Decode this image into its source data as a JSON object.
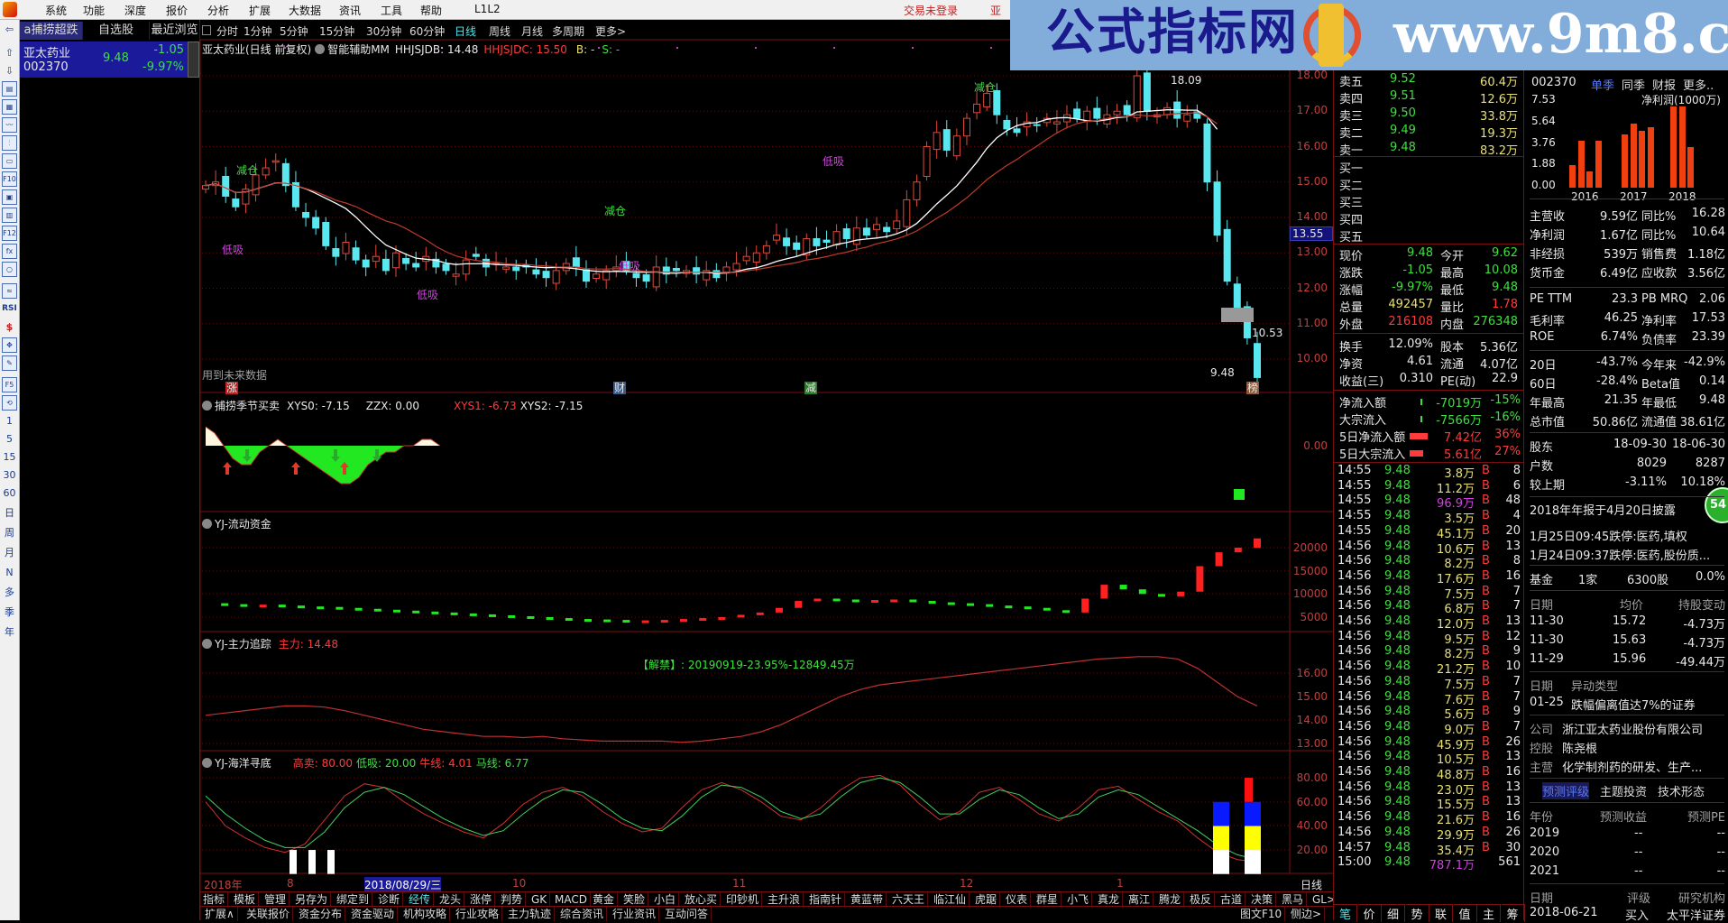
{
  "menu": {
    "items": [
      "系统",
      "功能",
      "深度",
      "报价",
      "分析",
      "扩展",
      "大数据",
      "资讯",
      "工具",
      "帮助",
      "L1L2"
    ],
    "trade_status": "交易未登录",
    "trade_extra": "亚"
  },
  "banner": {
    "logo_text": "公式指标网",
    "url": "www.9m8.cn"
  },
  "toolbar": {
    "labels": [
      "⇦",
      "⇧",
      "⇩",
      "▤",
      "▦",
      "〰",
      "⫶",
      "▭",
      "F10",
      "▣",
      "▥",
      "F12",
      "fx",
      "○",
      "≈",
      "RSI",
      "$",
      "✥",
      "✎",
      "F5",
      "⟲",
      "1",
      "5",
      "15",
      "30",
      "60",
      "日",
      "周",
      "月",
      "N",
      "多",
      "季",
      "年"
    ]
  },
  "stocklist": {
    "tabs": [
      "a捕捞超跌",
      "自选股",
      "最近浏览"
    ],
    "stock": {
      "name": "亚太药业",
      "code": "002370",
      "price": "9.48",
      "change": "-1.05",
      "pct": "-9.97%"
    }
  },
  "periods": {
    "items": [
      "分时",
      "1分钟",
      "5分钟",
      "15分钟",
      "30分钟",
      "60分钟",
      "日线",
      "周线",
      "月线",
      "多周期",
      "更多>"
    ],
    "active": 6
  },
  "main": {
    "title": "亚太药业(日线 前复权)",
    "indicator": "智能辅助MM",
    "v1": "HHJSJDB: 14.48",
    "v2": "HHJSJDC: 15.50",
    "v3": "B: -",
    "v4": "S: -",
    "yticks": [
      "18.00",
      "17.00",
      "16.00",
      "15.00",
      "14.00",
      "13.00",
      "12.00",
      "11.00",
      "10.00"
    ],
    "cursor_price": "13.55",
    "high_label": "18.09",
    "low_label": "9.48",
    "mark_label": "10.53",
    "future_note": "用到未来数据",
    "markers": [
      "涨",
      "财",
      "减",
      "榜"
    ],
    "signal_reduce": "减仓",
    "signal_buy": "低吸",
    "closes": [
      14.9,
      15.0,
      14.6,
      14.3,
      14.8,
      15.2,
      15.4,
      15.6,
      14.9,
      14.3,
      14.0,
      13.7,
      13.2,
      12.9,
      13.3,
      12.8,
      12.6,
      12.9,
      12.5,
      13.0,
      12.7,
      12.6,
      12.9,
      12.6,
      12.5,
      12.4,
      12.8,
      12.9,
      12.6,
      12.7,
      12.6,
      12.5,
      12.6,
      12.4,
      12.3,
      12.5,
      12.7,
      12.6,
      12.2,
      12.4,
      12.5,
      12.6,
      12.5,
      12.3,
      12.2,
      12.6,
      12.4,
      12.5,
      12.5,
      12.4,
      12.5,
      12.3,
      12.6,
      12.7,
      12.9,
      13.0,
      13.2,
      13.5,
      13.2,
      13.1,
      13.4,
      13.2,
      13.3,
      13.6,
      13.4,
      13.7,
      13.5,
      13.8,
      13.6,
      13.9,
      14.5,
      15.0,
      16.0,
      16.4,
      15.9,
      16.3,
      16.8,
      17.2,
      17.5,
      16.9,
      16.5,
      16.4,
      16.7,
      16.6,
      16.8,
      16.7,
      16.9,
      16.8,
      17.0,
      16.8,
      16.9,
      17.0,
      16.9,
      18.0,
      17.0,
      16.9,
      17.1,
      16.8,
      16.9,
      16.8,
      15.0,
      13.5,
      12.2,
      11.4,
      10.6,
      9.48
    ]
  },
  "pane2": {
    "title": "捕捞季节买卖",
    "xys0": "XYS0: -7.15",
    "zzx": "ZZX: 0.00",
    "xys1": "XYS1: -6.73",
    "xys2": "XYS2: -7.15",
    "ytick": "0.00",
    "values": [
      3,
      2,
      0,
      -2,
      -3,
      -3,
      -1,
      0,
      1,
      0,
      -1,
      -2,
      -3,
      -4,
      -5,
      -6,
      -6,
      -5,
      -3,
      -2,
      -1,
      -1,
      0,
      0,
      1,
      1,
      0
    ]
  },
  "pane3": {
    "title": "YJ-流动资金",
    "yticks": [
      "20000",
      "15000",
      "10000",
      "5000"
    ],
    "values": [
      8000,
      7800,
      7600,
      7700,
      7500,
      7300,
      7200,
      7000,
      6800,
      6600,
      6400,
      6200,
      6000,
      5800,
      5600,
      5400,
      5200,
      5000,
      4800,
      4600,
      4500,
      4400,
      4300,
      4300,
      4400,
      4600,
      4800,
      5000,
      5500,
      6000,
      7000,
      8500,
      9000,
      8800,
      8600,
      8700,
      8800,
      8500,
      8200,
      8000,
      7800,
      7500,
      7300,
      7000,
      6500,
      6000,
      9000,
      12000,
      11000,
      10000,
      9500,
      10500,
      16000,
      19000,
      20000,
      22000
    ]
  },
  "pane4": {
    "title": "YJ-主力追踪",
    "value": "主力: 14.48",
    "note": "【解禁】: 20190919-23.95%-12849.45万",
    "yticks": [
      "16.00",
      "15.00",
      "14.00",
      "13.00"
    ],
    "values": [
      14.2,
      14.3,
      14.4,
      14.5,
      14.6,
      14.6,
      14.55,
      14.4,
      14.2,
      14.0,
      13.8,
      13.6,
      13.5,
      13.4,
      13.3,
      13.3,
      13.25,
      13.3,
      13.2,
      13.15,
      13.1,
      13.1,
      13.1,
      13.1,
      13.05,
      13.1,
      13.2,
      13.3,
      13.5,
      13.8,
      14.2,
      14.6,
      15.0,
      15.3,
      15.5,
      15.6,
      15.7,
      15.8,
      15.9,
      16.0,
      16.1,
      16.2,
      16.3,
      16.4,
      16.5,
      16.6,
      16.65,
      16.7,
      16.7,
      16.6,
      16.2,
      15.6,
      15.0,
      14.6
    ]
  },
  "pane5": {
    "title": "YJ-海洋寻底",
    "sell": "高卖: 80.00",
    "buy": "低吸: 20.00",
    "bull": "牛线: 4.01",
    "horse": "马线: 6.77",
    "yticks": [
      "80.00",
      "60.00",
      "40.00",
      "20.00"
    ],
    "red": [
      60,
      40,
      30,
      22,
      18,
      25,
      45,
      65,
      75,
      72,
      60,
      50,
      42,
      35,
      30,
      42,
      58,
      68,
      72,
      65,
      52,
      42,
      35,
      38,
      55,
      70,
      76,
      70,
      60,
      48,
      45,
      55,
      70,
      80,
      82,
      74,
      58,
      45,
      52,
      68,
      72,
      62,
      50,
      44,
      55,
      70,
      73,
      62,
      52,
      44,
      30,
      18,
      12,
      10
    ],
    "green": [
      65,
      50,
      38,
      28,
      22,
      22,
      35,
      55,
      68,
      72,
      66,
      56,
      46,
      38,
      32,
      36,
      50,
      62,
      70,
      68,
      58,
      46,
      38,
      36,
      48,
      64,
      74,
      72,
      64,
      52,
      46,
      50,
      64,
      76,
      80,
      76,
      64,
      50,
      50,
      62,
      70,
      66,
      55,
      46,
      50,
      64,
      70,
      66,
      56,
      46,
      36,
      24,
      16,
      12
    ]
  },
  "dates": {
    "labels": [
      "2018年",
      "8",
      "2018/08/29/三",
      "10",
      "11",
      "12",
      "1"
    ],
    "period": "日线"
  },
  "tabs": {
    "items": [
      "指标",
      "模板",
      "管理",
      "另存为",
      "绑定到",
      "诊断",
      "经传",
      "龙头",
      "涨停",
      "判势",
      "GK",
      "MACD",
      "黄金",
      "笑脸",
      "小白",
      "放心买",
      "印钞机",
      "主升浪",
      "指南针",
      "黄蓝带",
      "六天王",
      "临江仙",
      "虎踞",
      "仪表",
      "群星",
      "小飞",
      "真龙",
      "离江",
      "腾龙",
      "极反",
      "古道",
      "决策",
      "黑马",
      "GL>",
      "+",
      "-"
    ]
  },
  "bottomtabs": {
    "items": [
      "扩展∧",
      "关联报价",
      "资金分布",
      "资金驱动",
      "机构攻略",
      "行业攻略",
      "主力轨迹",
      "综合资讯",
      "行业资讯",
      "互动问答"
    ],
    "f10": "图文F10",
    "side": "侧边>"
  },
  "orders": {
    "asks": [
      {
        "label": "卖五",
        "price": "9.52",
        "vol": "60.4万"
      },
      {
        "label": "卖四",
        "price": "9.51",
        "vol": "12.6万"
      },
      {
        "label": "卖三",
        "price": "9.50",
        "vol": "33.8万"
      },
      {
        "label": "卖二",
        "price": "9.49",
        "vol": "19.3万"
      },
      {
        "label": "卖一",
        "price": "9.48",
        "vol": "83.2万"
      }
    ],
    "bids": [
      {
        "label": "买一"
      },
      {
        "label": "买二"
      },
      {
        "label": "买三"
      },
      {
        "label": "买四"
      },
      {
        "label": "买五"
      }
    ],
    "quote": [
      [
        "现价",
        "9.48",
        "今开",
        "9.62"
      ],
      [
        "涨跌",
        "-1.05",
        "最高",
        "10.08"
      ],
      [
        "涨幅",
        "-9.97%",
        "最低",
        "9.48"
      ],
      [
        "总量",
        "492457",
        "量比",
        "1.78"
      ],
      [
        "外盘",
        "216108",
        "内盘",
        "276348"
      ]
    ],
    "stats": [
      [
        "换手",
        "12.09%",
        "股本",
        "5.36亿"
      ],
      [
        "净资",
        "4.61",
        "流通",
        "4.07亿"
      ],
      [
        "收益(三)",
        "0.310",
        "PE(动)",
        "22.9"
      ]
    ],
    "flows": [
      [
        "净流入额",
        "-7019万",
        "-15%"
      ],
      [
        "大宗流入",
        "-7566万",
        "-16%"
      ],
      [
        "5日净流入额",
        "7.42亿",
        "36%"
      ],
      [
        "5日大宗流入",
        "5.61亿",
        "27%"
      ]
    ],
    "trades": [
      [
        "14:55",
        "9.48",
        "3.8万",
        "B",
        "8"
      ],
      [
        "14:55",
        "9.48",
        "11.2万",
        "B",
        "6"
      ],
      [
        "14:55",
        "9.48",
        "96.9万",
        "B",
        "48"
      ],
      [
        "14:55",
        "9.48",
        "3.5万",
        "B",
        "4"
      ],
      [
        "14:55",
        "9.48",
        "45.1万",
        "B",
        "20"
      ],
      [
        "14:56",
        "9.48",
        "10.6万",
        "B",
        "13"
      ],
      [
        "14:56",
        "9.48",
        "8.2万",
        "B",
        "8"
      ],
      [
        "14:56",
        "9.48",
        "17.6万",
        "B",
        "16"
      ],
      [
        "14:56",
        "9.48",
        "7.5万",
        "B",
        "7"
      ],
      [
        "14:56",
        "9.48",
        "6.8万",
        "B",
        "7"
      ],
      [
        "14:56",
        "9.48",
        "12.0万",
        "B",
        "13"
      ],
      [
        "14:56",
        "9.48",
        "9.5万",
        "B",
        "12"
      ],
      [
        "14:56",
        "9.48",
        "8.2万",
        "B",
        "9"
      ],
      [
        "14:56",
        "9.48",
        "21.2万",
        "B",
        "10"
      ],
      [
        "14:56",
        "9.48",
        "7.5万",
        "B",
        "7"
      ],
      [
        "14:56",
        "9.48",
        "7.6万",
        "B",
        "7"
      ],
      [
        "14:56",
        "9.48",
        "5.6万",
        "B",
        "9"
      ],
      [
        "14:56",
        "9.48",
        "9.0万",
        "B",
        "7"
      ],
      [
        "14:56",
        "9.48",
        "45.9万",
        "B",
        "26"
      ],
      [
        "14:56",
        "9.48",
        "10.5万",
        "B",
        "13"
      ],
      [
        "14:56",
        "9.48",
        "48.8万",
        "B",
        "16"
      ],
      [
        "14:56",
        "9.48",
        "23.0万",
        "B",
        "13"
      ],
      [
        "14:56",
        "9.48",
        "15.5万",
        "B",
        "13"
      ],
      [
        "14:56",
        "9.48",
        "21.6万",
        "B",
        "16"
      ],
      [
        "14:56",
        "9.48",
        "29.9万",
        "B",
        "26"
      ],
      [
        "14:57",
        "9.48",
        "35.4万",
        "B",
        "30"
      ],
      [
        "15:00",
        "9.48",
        "787.1万",
        "",
        "561"
      ]
    ],
    "tabs": [
      "笔",
      "价",
      "细",
      "势",
      "联",
      "值",
      "主",
      "筹"
    ]
  },
  "f10": {
    "code": "002370",
    "tabs": [
      "单季",
      "同季",
      "财报",
      "更多.."
    ],
    "chart": {
      "title": "净利润(1000万)",
      "yticks": [
        "7.53",
        "5.64",
        "3.76",
        "1.88",
        "0.00"
      ],
      "years": [
        "2016",
        "2017",
        "2018"
      ],
      "values": [
        [
          2.0,
          4.1,
          1.45,
          4.1
        ],
        [
          4.7,
          5.6,
          5.0,
          5.3
        ],
        [
          7.1,
          7.1,
          3.6
        ]
      ],
      "bar_color": "#f04010"
    },
    "fin": [
      [
        "主营收",
        "9.59亿",
        "同比%",
        "16.28"
      ],
      [
        "净利润",
        "1.67亿",
        "同比%",
        "10.64"
      ],
      [
        "非经损",
        "539万",
        "销售费",
        "1.18亿"
      ],
      [
        "货币金",
        "6.49亿",
        "应收款",
        "3.56亿"
      ]
    ],
    "val": [
      [
        "PE TTM",
        "23.3",
        "PB MRQ",
        "2.06"
      ],
      [
        "毛利率",
        "46.25",
        "净利率",
        "17.53"
      ],
      [
        "ROE",
        "6.74%",
        "负债率",
        "23.39"
      ]
    ],
    "perf": [
      [
        "20日",
        "-43.7%",
        "今年来",
        "-42.9%"
      ],
      [
        "60日",
        "-28.4%",
        "Beta值",
        "0.14"
      ],
      [
        "年最高",
        "21.35",
        "年最低",
        "9.48"
      ],
      [
        "总市值",
        "50.86亿",
        "流通值",
        "38.61亿"
      ]
    ],
    "holders": [
      [
        "股东",
        "18-09-30",
        "18-06-30"
      ],
      [
        "户数",
        "8029",
        "8287"
      ],
      [
        "较上期",
        "-3.11%",
        "10.18%"
      ]
    ],
    "report": "2018年年报于4月20日披露",
    "badge": "54",
    "events": [
      "1月25日09:45跌停:医药,填权",
      "1月24日09:37跌停:医药,股份质..."
    ],
    "fund": [
      "基金",
      "1家",
      "6300股",
      "0.0%"
    ],
    "trades_head": [
      "日期",
      "均价",
      "持股变动"
    ],
    "trades": [
      [
        "11-30",
        "15.72",
        "-4.73万"
      ],
      [
        "11-30",
        "15.63",
        "-4.73万"
      ],
      [
        "11-29",
        "15.96",
        "-49.44万"
      ]
    ],
    "abn_head": [
      "日期",
      "异动类型"
    ],
    "abn": [
      "01-25",
      "跌幅偏离值达7%的证券"
    ],
    "company": [
      [
        "公司",
        "浙江亚太药业股份有限公司"
      ],
      [
        "控股",
        "陈尧根"
      ],
      [
        "主营",
        "化学制剂药的研发、生产..."
      ]
    ],
    "subtabs": [
      "预测评级",
      "主题投资",
      "技术形态"
    ],
    "fc_head": [
      "年份",
      "预测收益",
      "预测PE"
    ],
    "fc": [
      [
        "2019",
        "--",
        "--"
      ],
      [
        "2020",
        "--",
        "--"
      ],
      [
        "2021",
        "--",
        "--"
      ]
    ],
    "rating_head": [
      "日期",
      "评级",
      "研究机构"
    ],
    "rating": [
      "2018-06-21",
      "买入",
      "太平洋证券"
    ]
  }
}
